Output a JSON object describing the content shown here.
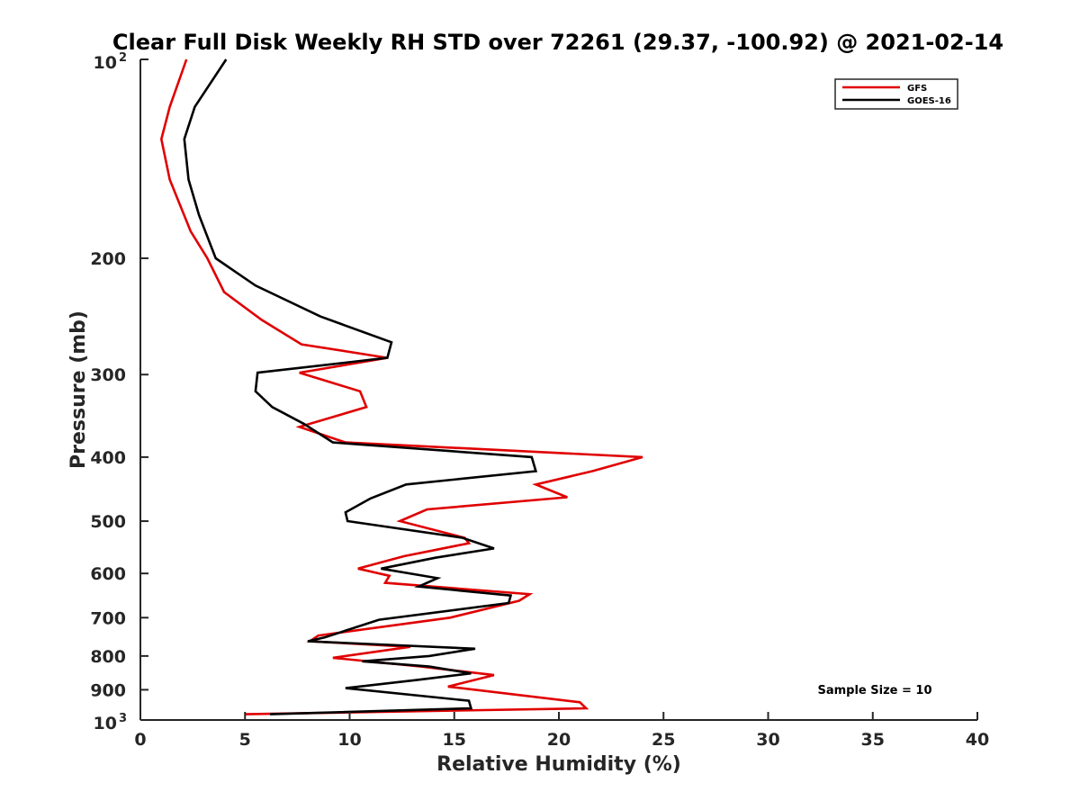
{
  "chart_data": {
    "type": "line",
    "title": "Clear Full Disk Weekly RH STD over 72261 (29.37, -100.92) @ 2021-02-14",
    "xlabel": "Relative Humidity (%)",
    "ylabel": "Pressure (mb)",
    "xlim": [
      0,
      40
    ],
    "ylim": [
      100,
      1000
    ],
    "y_scale": "log",
    "y_reversed": true,
    "grid": false,
    "legend_position": "top-right",
    "x_ticks": [
      0,
      5,
      10,
      15,
      20,
      25,
      30,
      35,
      40
    ],
    "x_tick_labels": [
      "0",
      "5",
      "10",
      "15",
      "20",
      "25",
      "30",
      "35",
      "40"
    ],
    "y_ticks": [
      200,
      300,
      400,
      500,
      600,
      700,
      800,
      900
    ],
    "y_tick_labels": [
      "200",
      "300",
      "400",
      "500",
      "600",
      "700",
      "800",
      "900"
    ],
    "y_top_label": {
      "base": "10",
      "exp": "2"
    },
    "y_bottom_label": {
      "base": "10",
      "exp": "3"
    },
    "annotation": "Sample Size = 10",
    "series": [
      {
        "name": "GFS",
        "color": "#e00000",
        "x": [
          2.2,
          1.4,
          1.0,
          1.4,
          2.4,
          3.2,
          4.0,
          5.8,
          7.7,
          11.8,
          7.6,
          10.5,
          10.8,
          7.6,
          9.8,
          24.0,
          21.6,
          18.9,
          20.4,
          13.7,
          12.4,
          15.5,
          15.7,
          12.6,
          10.4,
          11.9,
          11.7,
          18.6,
          18.1,
          14.8,
          8.5,
          8.1,
          12.9,
          9.2,
          13.4,
          16.9,
          14.7,
          21.0,
          21.3,
          5.0
        ],
        "y": [
          100,
          118,
          132,
          152,
          182,
          200,
          225,
          248,
          270,
          283,
          298,
          318,
          336,
          360,
          380,
          400,
          420,
          440,
          460,
          480,
          500,
          530,
          540,
          565,
          590,
          605,
          620,
          645,
          660,
          700,
          745,
          760,
          775,
          805,
          830,
          855,
          890,
          940,
          960,
          980
        ]
      },
      {
        "name": "GOES-16",
        "color": "#000000",
        "x": [
          4.1,
          2.6,
          2.1,
          2.3,
          2.8,
          3.6,
          5.5,
          8.6,
          12.0,
          11.8,
          5.6,
          5.5,
          6.3,
          7.8,
          9.2,
          18.7,
          18.9,
          12.7,
          11.0,
          9.8,
          9.9,
          15.4,
          16.9,
          14.1,
          11.5,
          14.2,
          13.3,
          17.7,
          17.6,
          11.4,
          8.8,
          8.0,
          16.0,
          13.8,
          10.6,
          13.8,
          15.8,
          13.2,
          9.8,
          15.7,
          15.8,
          6.2
        ],
        "y": [
          100,
          118,
          132,
          152,
          172,
          200,
          220,
          245,
          268,
          283,
          298,
          318,
          336,
          356,
          380,
          400,
          420,
          440,
          462,
          485,
          500,
          530,
          550,
          568,
          590,
          610,
          628,
          648,
          665,
          705,
          750,
          760,
          780,
          800,
          815,
          830,
          850,
          870,
          895,
          935,
          960,
          980
        ]
      }
    ]
  }
}
